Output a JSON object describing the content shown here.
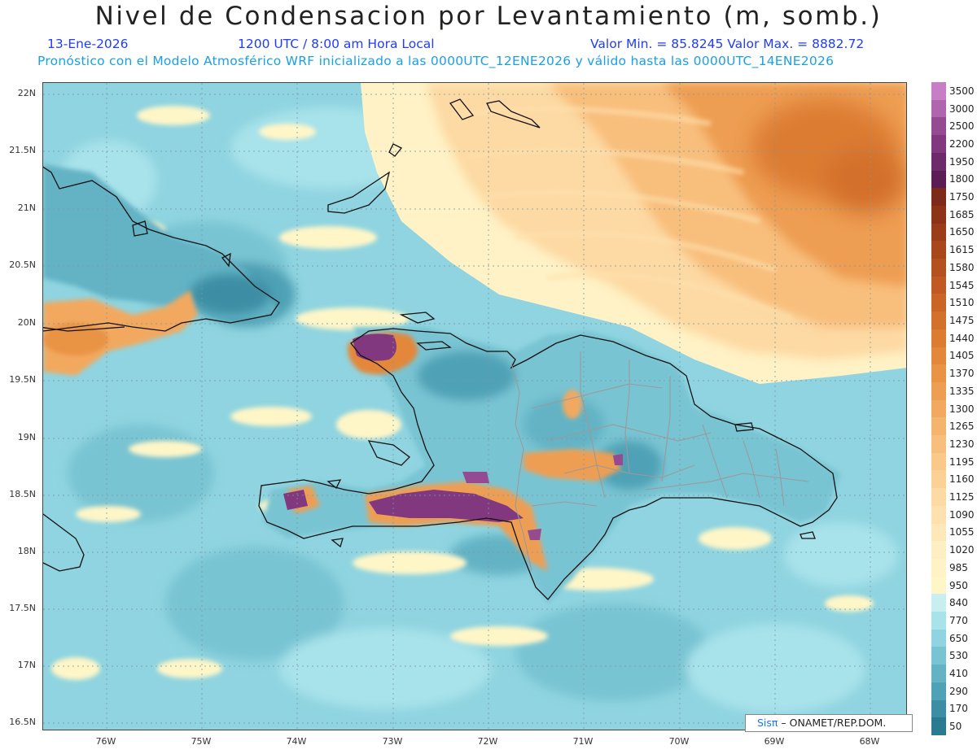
{
  "title": "Nivel de Condensacion por Levantamiento (m, somb.)",
  "header": {
    "date": "13-Ene-2026",
    "time": "1200 UTC / 8:00 am Hora Local",
    "minmax": "Valor Min. = 85.8245   Valor Max. = 8882.72",
    "subtitle": "Pronóstico con el Modelo Atmosférico WRF inicializado a las 0000UTC_12ENE2026 y válido hasta las  0000UTC_14ENE2026"
  },
  "axes": {
    "lat_labels": [
      "22N",
      "21.5N",
      "21N",
      "20.5N",
      "20N",
      "19.5N",
      "19N",
      "18.5N",
      "18N",
      "17.5N",
      "17N",
      "16.5N"
    ],
    "lon_labels": [
      "76W",
      "75W",
      "74W",
      "73W",
      "72W",
      "71W",
      "70W",
      "69W",
      "68W"
    ]
  },
  "legend": {
    "values": [
      "3500",
      "3000",
      "2500",
      "2200",
      "1950",
      "1800",
      "1750",
      "1685",
      "1650",
      "1615",
      "1580",
      "1545",
      "1510",
      "1475",
      "1440",
      "1405",
      "1370",
      "1335",
      "1300",
      "1265",
      "1230",
      "1195",
      "1160",
      "1125",
      "1090",
      "1055",
      "1020",
      "985",
      "950",
      "840",
      "770",
      "650",
      "530",
      "410",
      "290",
      "170",
      "50"
    ],
    "colors": [
      "#c77ec4",
      "#b066ae",
      "#954b92",
      "#82387f",
      "#6e2a6a",
      "#5c1d55",
      "#7d2a1b",
      "#8c3318",
      "#9b3d1a",
      "#a8461c",
      "#b5501f",
      "#c05a22",
      "#ca6526",
      "#d3702b",
      "#dc7c31",
      "#e3873a",
      "#e99345",
      "#ee9e52",
      "#f2a95f",
      "#f5b46d",
      "#f8be7b",
      "#fac889",
      "#fcd196",
      "#fdd9a3",
      "#fee1ae",
      "#fee8b9",
      "#feeec3",
      "#fff2c6",
      "#fff6c8",
      "#c8eef0",
      "#a8e2ea",
      "#8fd4e0",
      "#79c4d3",
      "#63b3c5",
      "#4fa1b5",
      "#3d8ea4",
      "#2a7a92"
    ]
  },
  "credit": {
    "sis": "Sisπ",
    "org": " – ONAMET/REP.DOM."
  }
}
